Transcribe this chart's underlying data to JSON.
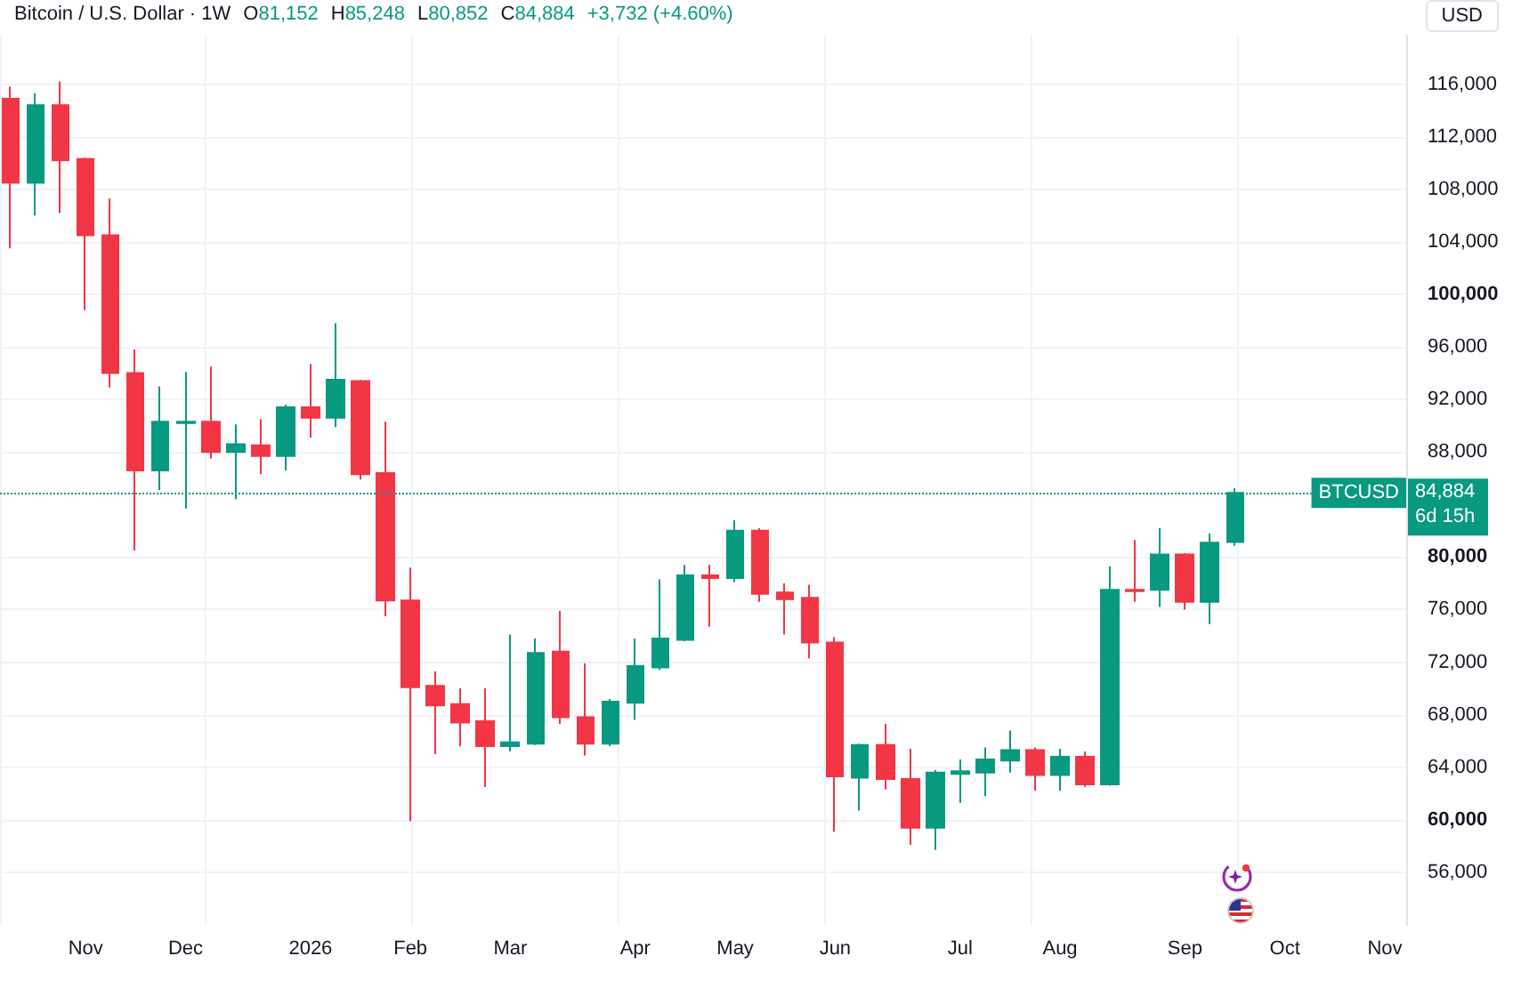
{
  "chart_data": {
    "type": "candlestick",
    "title": "Bitcoin / U.S. Dollar · 1W",
    "ylabel": "USD",
    "annotations": [
      "O81,152",
      "H85,248",
      "L80,852",
      "C84,884",
      "+3,732 (+4.60%)",
      "84,884",
      "6d 15h"
    ],
    "x": [
      "2025-10-13",
      "2025-10-20",
      "2025-10-27",
      "2025-11-03",
      "2025-11-10",
      "2025-11-17",
      "2025-11-24",
      "2025-12-01",
      "2025-12-08",
      "2025-12-15",
      "2025-12-22",
      "2025-12-29",
      "2026-01-05",
      "2026-01-12",
      "2026-01-19",
      "2026-01-26",
      "2026-02-02",
      "2026-02-09",
      "2026-02-16",
      "2026-02-23",
      "2026-03-02",
      "2026-03-09",
      "2026-03-16",
      "2026-03-23",
      "2026-03-30",
      "2026-04-06",
      "2026-04-13",
      "2026-04-20",
      "2026-04-27",
      "2026-05-04",
      "2026-05-11",
      "2026-05-18",
      "2026-05-25",
      "2026-06-01",
      "2026-06-08",
      "2026-06-15",
      "2026-06-22",
      "2026-06-29",
      "2026-07-06",
      "2026-07-13",
      "2026-07-20",
      "2026-07-27",
      "2026-08-03",
      "2026-08-10",
      "2026-08-17",
      "2026-08-24",
      "2026-08-31",
      "2026-09-07",
      "2026-09-14",
      "2026-09-21"
    ],
    "ohlc": [
      [
        114900,
        115800,
        103500,
        108500
      ],
      [
        108500,
        115300,
        106000,
        114400
      ],
      [
        114400,
        116200,
        106200,
        110200
      ],
      [
        110300,
        110400,
        98800,
        104500
      ],
      [
        104500,
        107300,
        92900,
        94000
      ],
      [
        94000,
        95800,
        80500,
        86600
      ],
      [
        86600,
        93000,
        85100,
        90300
      ],
      [
        90200,
        94100,
        83700,
        90300
      ],
      [
        90300,
        94500,
        87500,
        88000
      ],
      [
        88000,
        90100,
        84400,
        88600
      ],
      [
        88500,
        90500,
        86300,
        87700
      ],
      [
        87700,
        91600,
        86600,
        91400
      ],
      [
        91400,
        94700,
        89100,
        90600
      ],
      [
        90600,
        97800,
        89900,
        93500
      ],
      [
        93400,
        93500,
        85900,
        86300
      ],
      [
        86400,
        90300,
        75500,
        76700
      ],
      [
        76700,
        79200,
        59900,
        70100
      ],
      [
        70200,
        71300,
        65000,
        68700
      ],
      [
        68800,
        70000,
        65600,
        67400
      ],
      [
        67500,
        70000,
        62500,
        65600
      ],
      [
        65600,
        74100,
        65200,
        65900
      ],
      [
        65800,
        73800,
        65700,
        72700
      ],
      [
        72800,
        75900,
        67300,
        67800
      ],
      [
        67800,
        71900,
        64900,
        65800
      ],
      [
        65800,
        69200,
        65600,
        69000
      ],
      [
        68900,
        73800,
        67600,
        71700
      ],
      [
        71600,
        78300,
        71400,
        73800
      ],
      [
        73700,
        79400,
        73600,
        78600
      ],
      [
        78600,
        79400,
        74700,
        78400
      ],
      [
        78400,
        82800,
        78100,
        82000
      ],
      [
        82000,
        82200,
        76600,
        77200
      ],
      [
        77300,
        78000,
        74100,
        76800
      ],
      [
        76900,
        77900,
        72300,
        73500
      ],
      [
        73500,
        73900,
        59100,
        63300
      ],
      [
        63200,
        65800,
        60700,
        65700
      ],
      [
        65700,
        67300,
        62300,
        63100
      ],
      [
        63100,
        65400,
        58100,
        59400
      ],
      [
        59400,
        63800,
        57700,
        63600
      ],
      [
        63500,
        64600,
        61300,
        63700
      ],
      [
        63600,
        65500,
        61800,
        64600
      ],
      [
        64500,
        66800,
        63600,
        65300
      ],
      [
        65300,
        65500,
        62200,
        63400
      ],
      [
        63400,
        65400,
        62200,
        64800
      ],
      [
        64800,
        65200,
        62500,
        62700
      ],
      [
        62700,
        79300,
        62600,
        77500
      ],
      [
        77500,
        81300,
        76600,
        77400
      ],
      [
        77500,
        82200,
        76200,
        80200
      ],
      [
        80200,
        80300,
        76000,
        76600
      ],
      [
        76600,
        81800,
        74900,
        81100
      ],
      [
        81152,
        85248,
        80852,
        84884
      ]
    ],
    "colors": [
      "#f23645",
      "#089981",
      "#f23645",
      "#f23645",
      "#f23645",
      "#f23645",
      "#089981",
      "#089981",
      "#f23645",
      "#089981",
      "#f23645",
      "#089981",
      "#f23645",
      "#089981",
      "#f23645",
      "#f23645",
      "#f23645",
      "#f23645",
      "#f23645",
      "#f23645",
      "#089981",
      "#089981",
      "#f23645",
      "#f23645",
      "#089981",
      "#089981",
      "#089981",
      "#089981",
      "#f23645",
      "#089981",
      "#f23645",
      "#f23645",
      "#f23645",
      "#f23645",
      "#089981",
      "#f23645",
      "#f23645",
      "#089981",
      "#089981",
      "#089981",
      "#089981",
      "#f23645",
      "#089981",
      "#f23645",
      "#089981",
      "#f23645",
      "#089981",
      "#f23645",
      "#089981",
      "#089981"
    ],
    "xlim": [
      "2025-10-10",
      "2026-11-08"
    ],
    "xticks": [
      {
        "value": "2025-11-03",
        "label": "Nov"
      },
      {
        "value": "2025-12-01",
        "label": "Dec"
      },
      {
        "value": "2026-01-05",
        "label": "2026"
      },
      {
        "value": "2026-02-02",
        "label": "Feb"
      },
      {
        "value": "2026-03-02",
        "label": "Mar"
      },
      {
        "value": "2026-04-06",
        "label": "Apr"
      },
      {
        "value": "2026-05-04",
        "label": "May"
      },
      {
        "value": "2026-06-01",
        "label": "Jun"
      },
      {
        "value": "2026-07-06",
        "label": "Jul"
      },
      {
        "value": "2026-08-03",
        "label": "Aug"
      },
      {
        "value": "2026-09-07",
        "label": "Sep"
      },
      {
        "value": "2026-10-05",
        "label": "Oct"
      },
      {
        "value": "2026-11-02",
        "label": "Nov"
      }
    ],
    "ylim": [
      52000,
      119700
    ],
    "yticks": [
      {
        "value": 56000,
        "label": "56,000"
      },
      {
        "value": 60000,
        "label": "60,000"
      },
      {
        "value": 64000,
        "label": "64,000"
      },
      {
        "value": 68000,
        "label": "68,000"
      },
      {
        "value": 72000,
        "label": "72,000"
      },
      {
        "value": 76000,
        "label": "76,000"
      },
      {
        "value": 80000,
        "label": "80,000"
      },
      {
        "value": 88000,
        "label": "88,000"
      },
      {
        "value": 92000,
        "label": "92,000"
      },
      {
        "value": 96000,
        "label": "96,000"
      },
      {
        "value": 100000,
        "label": "100,000"
      },
      {
        "value": 104000,
        "label": "104,000"
      },
      {
        "value": 108000,
        "label": "108,000"
      },
      {
        "value": 112000,
        "label": "112,000"
      },
      {
        "value": 116000,
        "label": "116,000"
      }
    ],
    "ref_lines": [
      {
        "axis": "y",
        "value": 84884,
        "label": "BTCUSD",
        "color": "#089981",
        "line_style": "dotted"
      }
    ],
    "grid": true
  }
}
